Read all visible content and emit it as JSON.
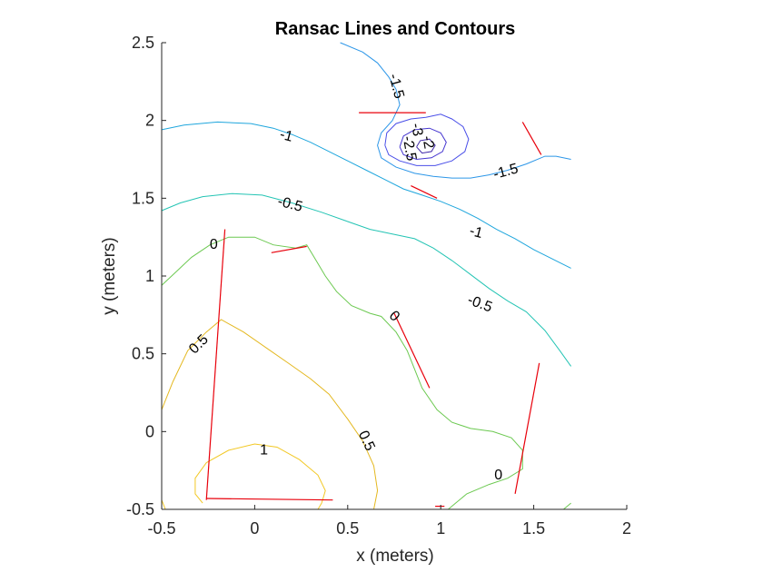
{
  "chart_data": {
    "type": "line",
    "title": "Ransac Lines and Contours",
    "xlabel": "x (meters)",
    "ylabel": "y (meters)",
    "xlim": [
      -0.5,
      2
    ],
    "ylim": [
      -0.5,
      2.5
    ],
    "xticks": [
      -0.5,
      0,
      0.5,
      1,
      1.5,
      2
    ],
    "yticks": [
      -0.5,
      0,
      0.5,
      1,
      1.5,
      2,
      2.5
    ],
    "xtick_labels": [
      "-0.5",
      "0",
      "0.5",
      "1",
      "1.5",
      "2"
    ],
    "ytick_labels": [
      "-0.5",
      "0",
      "0.5",
      "1",
      "1.5",
      "2",
      "2.5"
    ],
    "grid": false,
    "colors": {
      "ransac": "#e8000b",
      "c_neg3": "#3e26a8",
      "c_neg25": "#4535d0",
      "c_neg2": "#4a4fe8",
      "c_neg15": "#2c96e8",
      "c_neg1": "#1fa6dd",
      "c_neg05": "#24c4b4",
      "c_0": "#6cc951",
      "c_05": "#e4b820",
      "c_1": "#f2c824"
    },
    "contour_lines": [
      {
        "level": -1.5,
        "color_key": "c_neg15",
        "points": [
          [
            0.46,
            2.5
          ],
          [
            0.58,
            2.44
          ],
          [
            0.66,
            2.37
          ],
          [
            0.72,
            2.28
          ],
          [
            0.76,
            2.2
          ],
          [
            0.78,
            2.1
          ],
          [
            0.74,
            2.0
          ],
          [
            0.68,
            1.92
          ],
          [
            0.66,
            1.84
          ],
          [
            0.68,
            1.76
          ],
          [
            0.76,
            1.7
          ],
          [
            0.86,
            1.66
          ],
          [
            0.96,
            1.64
          ],
          [
            1.06,
            1.63
          ],
          [
            1.16,
            1.63
          ],
          [
            1.26,
            1.65
          ],
          [
            1.36,
            1.68
          ],
          [
            1.46,
            1.72
          ],
          [
            1.56,
            1.77
          ],
          [
            1.62,
            1.77
          ],
          [
            1.7,
            1.75
          ]
        ]
      },
      {
        "level": -2,
        "color_key": "c_neg2",
        "points": [
          [
            0.7,
            1.84
          ],
          [
            0.71,
            1.92
          ],
          [
            0.76,
            1.98
          ],
          [
            0.84,
            2.01
          ],
          [
            0.92,
            2.02
          ],
          [
            1.0,
            2.04
          ],
          [
            1.06,
            2.01
          ],
          [
            1.12,
            1.96
          ],
          [
            1.15,
            1.88
          ],
          [
            1.13,
            1.8
          ],
          [
            1.06,
            1.74
          ],
          [
            0.97,
            1.71
          ],
          [
            0.87,
            1.71
          ],
          [
            0.78,
            1.74
          ],
          [
            0.72,
            1.78
          ],
          [
            0.7,
            1.84
          ]
        ]
      },
      {
        "level": -2.5,
        "color_key": "c_neg25",
        "points": [
          [
            0.78,
            1.83
          ],
          [
            0.8,
            1.9
          ],
          [
            0.86,
            1.94
          ],
          [
            0.94,
            1.95
          ],
          [
            1.0,
            1.92
          ],
          [
            1.03,
            1.86
          ],
          [
            1.01,
            1.8
          ],
          [
            0.95,
            1.76
          ],
          [
            0.87,
            1.75
          ],
          [
            0.8,
            1.78
          ],
          [
            0.78,
            1.83
          ]
        ]
      },
      {
        "level": -3,
        "color_key": "c_neg3",
        "points": [
          [
            0.87,
            1.83
          ],
          [
            0.89,
            1.87
          ],
          [
            0.94,
            1.88
          ],
          [
            0.97,
            1.84
          ],
          [
            0.95,
            1.8
          ],
          [
            0.9,
            1.79
          ],
          [
            0.87,
            1.83
          ]
        ]
      },
      {
        "level": -1,
        "color_key": "c_neg1",
        "points": [
          [
            -0.5,
            1.94
          ],
          [
            -0.38,
            1.97
          ],
          [
            -0.2,
            1.99
          ],
          [
            -0.02,
            1.98
          ],
          [
            0.1,
            1.95
          ],
          [
            0.2,
            1.91
          ],
          [
            0.3,
            1.86
          ],
          [
            0.4,
            1.8
          ],
          [
            0.5,
            1.74
          ],
          [
            0.6,
            1.68
          ],
          [
            0.7,
            1.62
          ],
          [
            0.8,
            1.56
          ],
          [
            0.9,
            1.52
          ],
          [
            1.0,
            1.48
          ],
          [
            1.1,
            1.43
          ],
          [
            1.2,
            1.37
          ],
          [
            1.3,
            1.3
          ],
          [
            1.4,
            1.24
          ],
          [
            1.5,
            1.17
          ],
          [
            1.6,
            1.11
          ],
          [
            1.7,
            1.05
          ]
        ]
      },
      {
        "level": -0.5,
        "color_key": "c_neg05",
        "points": [
          [
            -0.5,
            1.42
          ],
          [
            -0.4,
            1.47
          ],
          [
            -0.28,
            1.51
          ],
          [
            -0.12,
            1.53
          ],
          [
            0.04,
            1.52
          ],
          [
            0.2,
            1.47
          ],
          [
            0.36,
            1.41
          ],
          [
            0.5,
            1.35
          ],
          [
            0.62,
            1.3
          ],
          [
            0.74,
            1.27
          ],
          [
            0.86,
            1.24
          ],
          [
            0.96,
            1.18
          ],
          [
            1.06,
            1.1
          ],
          [
            1.16,
            1.01
          ],
          [
            1.26,
            0.92
          ],
          [
            1.36,
            0.84
          ],
          [
            1.46,
            0.77
          ],
          [
            1.56,
            0.65
          ],
          [
            1.64,
            0.52
          ],
          [
            1.7,
            0.42
          ]
        ]
      },
      {
        "level": 0,
        "color_key": "c_0",
        "points": [
          [
            -0.5,
            0.94
          ],
          [
            -0.42,
            1.03
          ],
          [
            -0.34,
            1.12
          ],
          [
            -0.24,
            1.2
          ],
          [
            -0.14,
            1.25
          ],
          [
            0.0,
            1.25
          ],
          [
            0.1,
            1.2
          ],
          [
            0.22,
            1.18
          ],
          [
            0.28,
            1.2
          ],
          [
            0.32,
            1.12
          ],
          [
            0.38,
            1.0
          ],
          [
            0.44,
            0.9
          ],
          [
            0.52,
            0.81
          ],
          [
            0.62,
            0.76
          ],
          [
            0.68,
            0.74
          ],
          [
            0.76,
            0.64
          ],
          [
            0.82,
            0.52
          ],
          [
            0.86,
            0.4
          ],
          [
            0.9,
            0.28
          ],
          [
            0.98,
            0.14
          ],
          [
            1.06,
            0.06
          ],
          [
            1.16,
            0.02
          ],
          [
            1.28,
            0.0
          ],
          [
            1.38,
            -0.04
          ],
          [
            1.44,
            -0.12
          ],
          [
            1.44,
            -0.24
          ],
          [
            1.36,
            -0.3
          ],
          [
            1.26,
            -0.34
          ],
          [
            1.14,
            -0.4
          ],
          [
            1.08,
            -0.46
          ],
          [
            1.04,
            -0.5
          ]
        ]
      },
      {
        "level": 0,
        "color_key": "c_0",
        "points": [
          [
            1.66,
            -0.5
          ],
          [
            1.7,
            -0.46
          ]
        ]
      },
      {
        "level": 0.5,
        "color_key": "c_05",
        "points": [
          [
            -0.5,
            0.14
          ],
          [
            -0.44,
            0.32
          ],
          [
            -0.36,
            0.52
          ],
          [
            -0.26,
            0.64
          ],
          [
            -0.18,
            0.72
          ],
          [
            -0.06,
            0.64
          ],
          [
            0.06,
            0.54
          ],
          [
            0.18,
            0.44
          ],
          [
            0.3,
            0.34
          ],
          [
            0.4,
            0.24
          ],
          [
            0.5,
            0.08
          ],
          [
            0.58,
            -0.06
          ],
          [
            0.64,
            -0.22
          ],
          [
            0.66,
            -0.38
          ],
          [
            0.64,
            -0.5
          ]
        ]
      },
      {
        "level": 1,
        "color_key": "c_1",
        "points": [
          [
            -0.28,
            -0.46
          ],
          [
            -0.32,
            -0.4
          ],
          [
            -0.32,
            -0.3
          ],
          [
            -0.26,
            -0.2
          ],
          [
            -0.14,
            -0.12
          ],
          [
            0.0,
            -0.08
          ],
          [
            0.12,
            -0.1
          ],
          [
            0.24,
            -0.18
          ],
          [
            0.34,
            -0.28
          ],
          [
            0.38,
            -0.38
          ],
          [
            0.36,
            -0.46
          ],
          [
            0.34,
            -0.5
          ]
        ]
      },
      {
        "level": 1,
        "color_key": "c_1",
        "points": [
          [
            -0.5,
            -0.44
          ],
          [
            -0.48,
            -0.5
          ]
        ]
      }
    ],
    "contour_labels": [
      {
        "text": "-1.5",
        "x": 0.76,
        "y": 2.22,
        "angle": 75
      },
      {
        "text": "-2.5",
        "x": 0.83,
        "y": 1.82,
        "angle": 80
      },
      {
        "text": "-2",
        "x": 0.93,
        "y": 1.86,
        "angle": 80
      },
      {
        "text": "-3",
        "x": 0.87,
        "y": 1.94,
        "angle": 80
      },
      {
        "text": "-1.5",
        "x": 1.35,
        "y": 1.67,
        "angle": -15
      },
      {
        "text": "-1",
        "x": 0.17,
        "y": 1.9,
        "angle": 15
      },
      {
        "text": "-1",
        "x": 1.19,
        "y": 1.28,
        "angle": 15
      },
      {
        "text": "-0.5",
        "x": 0.19,
        "y": 1.46,
        "angle": 15
      },
      {
        "text": "-0.5",
        "x": 1.21,
        "y": 0.82,
        "angle": 20
      },
      {
        "text": "0",
        "x": -0.22,
        "y": 1.2,
        "angle": 0
      },
      {
        "text": "0",
        "x": 0.75,
        "y": 0.74,
        "angle": 45
      },
      {
        "text": "0",
        "x": 1.31,
        "y": -0.28,
        "angle": 0
      },
      {
        "text": "0.5",
        "x": -0.3,
        "y": 0.56,
        "angle": -45
      },
      {
        "text": "0.5",
        "x": 0.6,
        "y": -0.06,
        "angle": 65
      },
      {
        "text": "1",
        "x": 0.05,
        "y": -0.12,
        "angle": 0
      }
    ],
    "ransac_lines": [
      [
        [
          -0.16,
          1.3
        ],
        [
          -0.26,
          -0.44
        ]
      ],
      [
        [
          -0.26,
          -0.43
        ],
        [
          0.42,
          -0.44
        ]
      ],
      [
        [
          0.09,
          1.15
        ],
        [
          0.28,
          1.19
        ]
      ],
      [
        [
          0.56,
          2.05
        ],
        [
          0.92,
          2.05
        ]
      ],
      [
        [
          0.84,
          1.58
        ],
        [
          0.98,
          1.5
        ]
      ],
      [
        [
          1.44,
          1.99
        ],
        [
          1.54,
          1.78
        ]
      ],
      [
        [
          0.75,
          0.76
        ],
        [
          0.94,
          0.28
        ]
      ],
      [
        [
          1.4,
          -0.4
        ],
        [
          1.53,
          0.44
        ]
      ],
      [
        [
          0.97,
          -0.48
        ],
        [
          1.02,
          -0.48
        ]
      ]
    ]
  }
}
